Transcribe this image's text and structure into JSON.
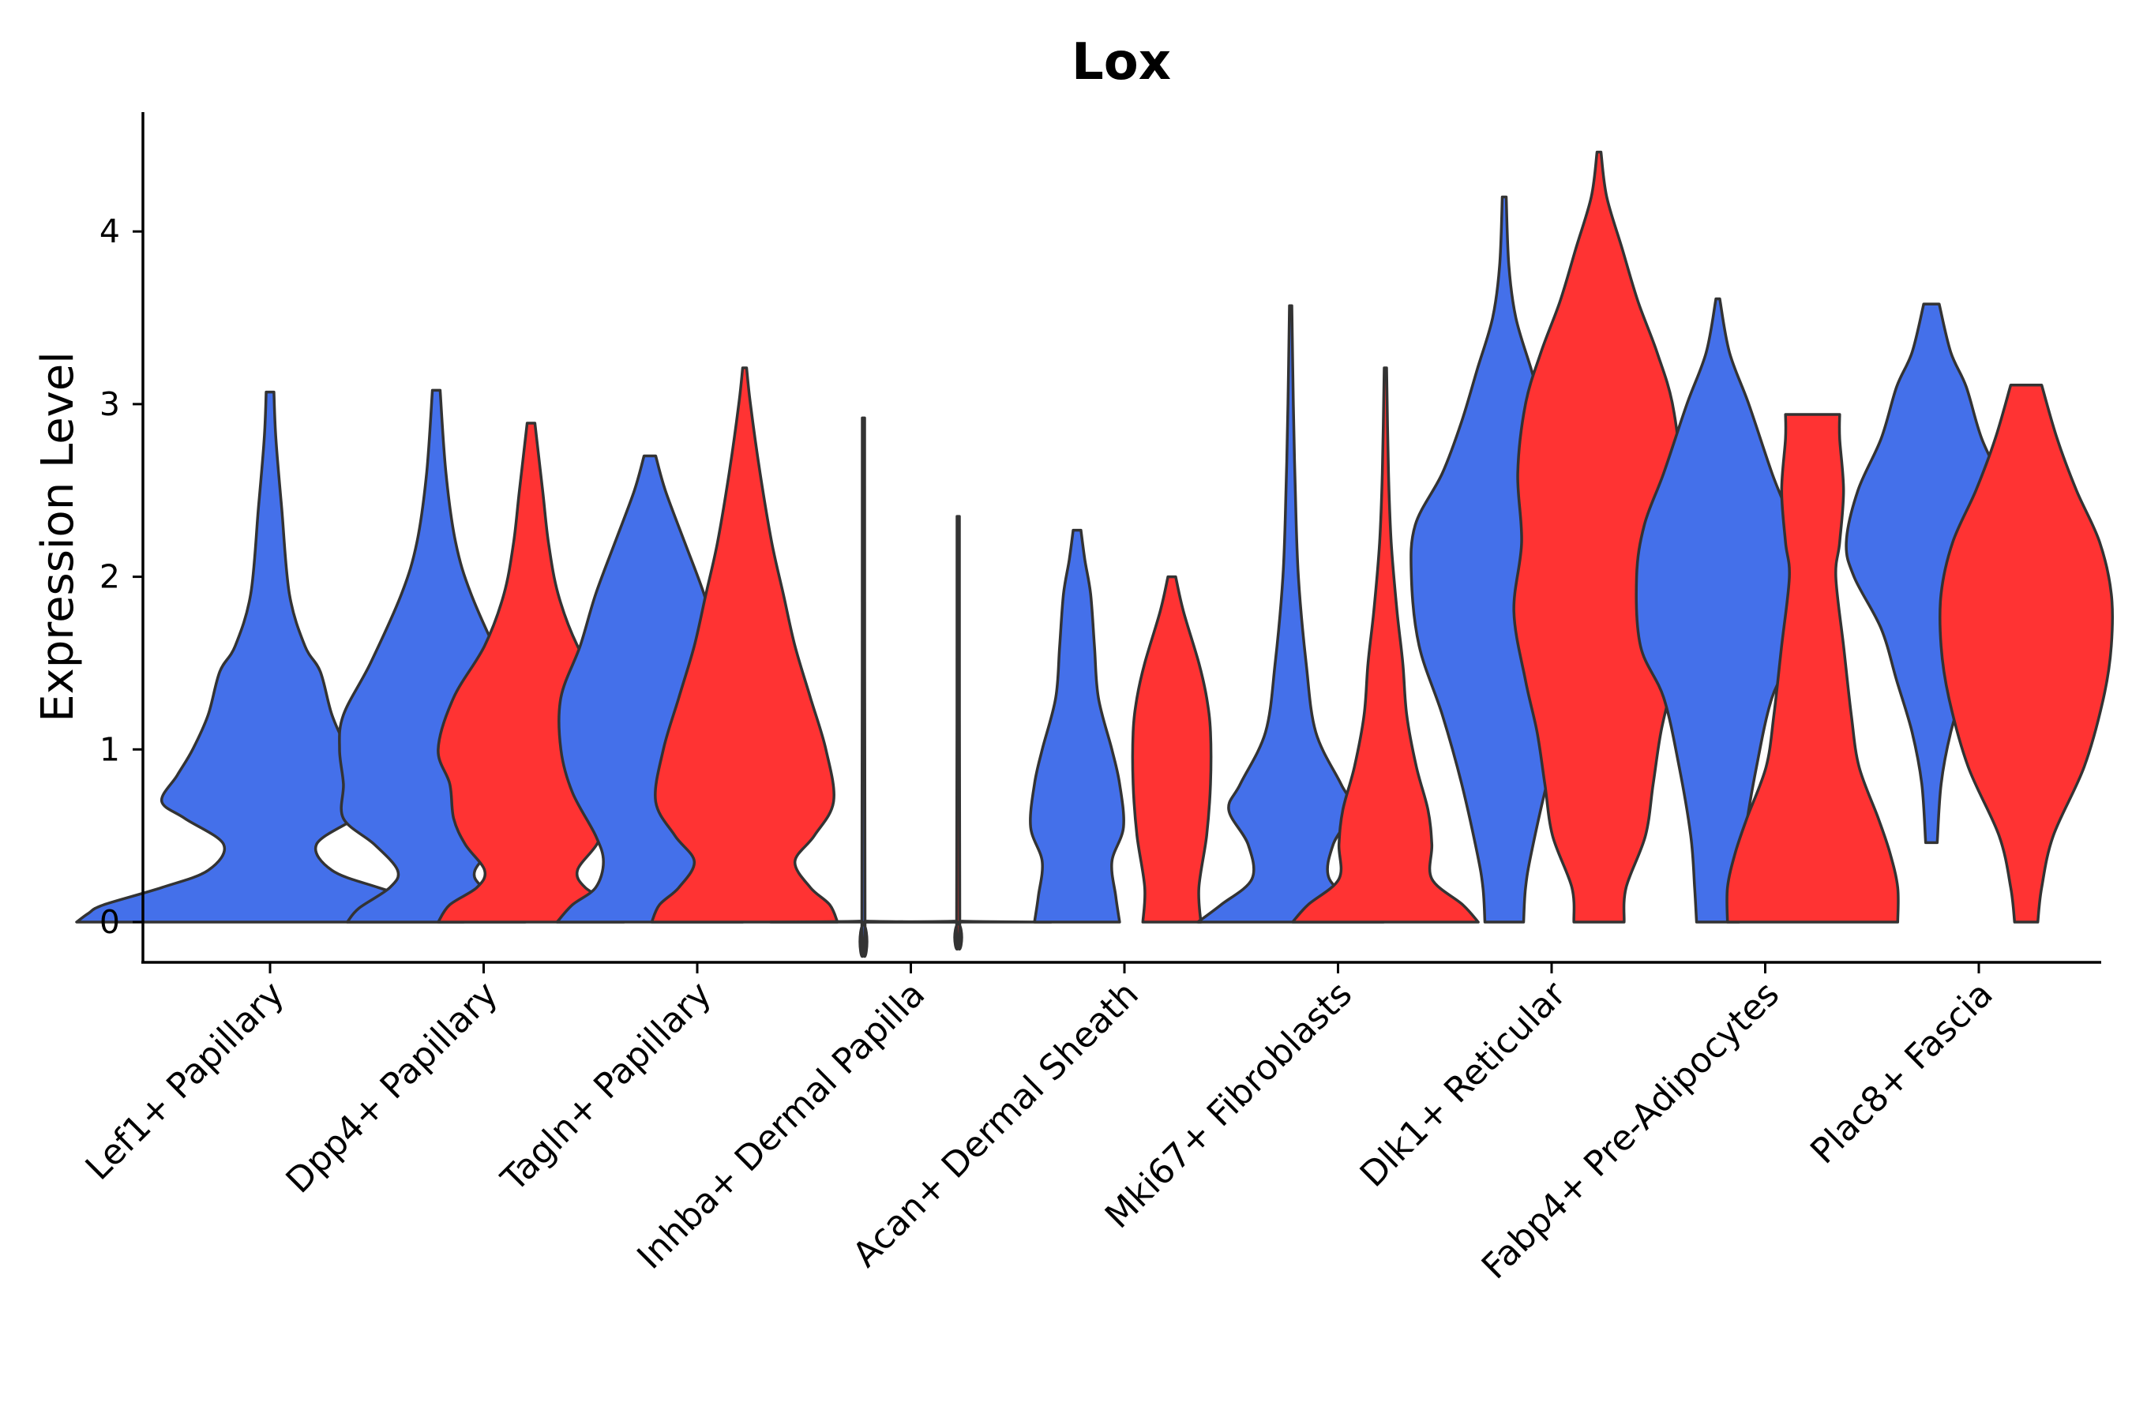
{
  "chart_data": {
    "type": "violin",
    "title": "Lox",
    "xlabel": "",
    "ylabel": "Expression Level",
    "ylim": [
      -0.22,
      4.7
    ],
    "yticks": [
      0,
      1,
      2,
      3,
      4
    ],
    "grid": false,
    "legend": "none",
    "colors": {
      "group1": "#4470EA",
      "group2": "#FF3333",
      "outline": "#333333"
    },
    "categories": [
      "Lef1+ Papillary",
      "Dpp4+ Papillary",
      "Tagln+ Papillary",
      "Inhba+ Dermal Papilla",
      "Acan+ Dermal Sheath",
      "Mki67+ Fibroblasts",
      "Dlk1+ Reticular",
      "Fabp4+ Pre-Adipocytes",
      "Plac8+ Fascia"
    ],
    "violins": [
      {
        "category": "Lef1+ Papillary",
        "group": "blue",
        "min": 0,
        "max": 3.07,
        "profile": [
          [
            0,
            0.5
          ],
          [
            0.05,
            0.47
          ],
          [
            0.1,
            0.43
          ],
          [
            0.2,
            0.28
          ],
          [
            0.3,
            0.16
          ],
          [
            0.45,
            0.12
          ],
          [
            0.6,
            0.22
          ],
          [
            0.7,
            0.28
          ],
          [
            0.85,
            0.24
          ],
          [
            1.0,
            0.2
          ],
          [
            1.2,
            0.16
          ],
          [
            1.45,
            0.13
          ],
          [
            1.6,
            0.09
          ],
          [
            1.9,
            0.05
          ],
          [
            2.4,
            0.03
          ],
          [
            2.8,
            0.015
          ],
          [
            3.07,
            0.01
          ]
        ]
      },
      {
        "category": "Dpp4+ Papillary",
        "group": "blue",
        "min": 0,
        "max": 3.08,
        "profile": [
          [
            0,
            0.23
          ],
          [
            0.08,
            0.2
          ],
          [
            0.2,
            0.12
          ],
          [
            0.3,
            0.1
          ],
          [
            0.45,
            0.16
          ],
          [
            0.6,
            0.24
          ],
          [
            0.8,
            0.24
          ],
          [
            1.0,
            0.25
          ],
          [
            1.2,
            0.24
          ],
          [
            1.5,
            0.17
          ],
          [
            1.9,
            0.09
          ],
          [
            2.2,
            0.05
          ],
          [
            2.6,
            0.025
          ],
          [
            3.08,
            0.01
          ]
        ]
      },
      {
        "category": "Dpp4+ Papillary",
        "group": "red",
        "min": 0,
        "max": 2.89,
        "profile": [
          [
            0,
            0.24
          ],
          [
            0.1,
            0.21
          ],
          [
            0.2,
            0.14
          ],
          [
            0.3,
            0.12
          ],
          [
            0.45,
            0.17
          ],
          [
            0.6,
            0.2
          ],
          [
            0.8,
            0.21
          ],
          [
            1.0,
            0.24
          ],
          [
            1.3,
            0.2
          ],
          [
            1.6,
            0.12
          ],
          [
            1.9,
            0.07
          ],
          [
            2.2,
            0.045
          ],
          [
            2.5,
            0.03
          ],
          [
            2.89,
            0.01
          ]
        ]
      },
      {
        "category": "Tagln+ Papillary",
        "group": "blue",
        "min": 0,
        "max": 2.7,
        "profile": [
          [
            0,
            0.24
          ],
          [
            0.1,
            0.2
          ],
          [
            0.2,
            0.14
          ],
          [
            0.35,
            0.12
          ],
          [
            0.5,
            0.14
          ],
          [
            0.75,
            0.2
          ],
          [
            1.0,
            0.23
          ],
          [
            1.3,
            0.23
          ],
          [
            1.6,
            0.18
          ],
          [
            1.9,
            0.14
          ],
          [
            2.2,
            0.09
          ],
          [
            2.5,
            0.04
          ],
          [
            2.7,
            0.015
          ]
        ]
      },
      {
        "category": "Tagln+ Papillary",
        "group": "red",
        "min": 0,
        "max": 3.21,
        "profile": [
          [
            0,
            0.24
          ],
          [
            0.1,
            0.22
          ],
          [
            0.2,
            0.17
          ],
          [
            0.35,
            0.13
          ],
          [
            0.5,
            0.18
          ],
          [
            0.7,
            0.23
          ],
          [
            1.0,
            0.21
          ],
          [
            1.3,
            0.17
          ],
          [
            1.6,
            0.13
          ],
          [
            1.9,
            0.1
          ],
          [
            2.2,
            0.07
          ],
          [
            2.6,
            0.04
          ],
          [
            3.0,
            0.015
          ],
          [
            3.21,
            0.005
          ]
        ]
      },
      {
        "category": "Inhba+ Dermal Papilla",
        "group": "blue",
        "min": 0,
        "max": 2.92,
        "profile": [
          [
            0,
            0.24
          ],
          [
            0.005,
            0.01
          ],
          [
            0.02,
            0.004
          ],
          [
            2.92,
            0.003
          ]
        ]
      },
      {
        "category": "Inhba+ Dermal Papilla",
        "group": "red",
        "min": 0,
        "max": 2.35,
        "profile": [
          [
            0,
            0.24
          ],
          [
            0.005,
            0.01
          ],
          [
            0.02,
            0.004
          ],
          [
            2.35,
            0.003
          ]
        ]
      },
      {
        "category": "Acan+ Dermal Sheath",
        "group": "blue",
        "min": 0,
        "max": 2.27,
        "profile": [
          [
            0,
            0.11
          ],
          [
            0.15,
            0.1
          ],
          [
            0.35,
            0.09
          ],
          [
            0.55,
            0.12
          ],
          [
            0.8,
            0.11
          ],
          [
            1.0,
            0.09
          ],
          [
            1.3,
            0.055
          ],
          [
            1.6,
            0.045
          ],
          [
            1.9,
            0.035
          ],
          [
            2.1,
            0.02
          ],
          [
            2.27,
            0.01
          ]
        ]
      },
      {
        "category": "Acan+ Dermal Sheath",
        "group": "red",
        "min": 0,
        "max": 2.0,
        "profile": [
          [
            0,
            0.075
          ],
          [
            0.2,
            0.07
          ],
          [
            0.5,
            0.09
          ],
          [
            0.8,
            0.1
          ],
          [
            1.1,
            0.1
          ],
          [
            1.3,
            0.09
          ],
          [
            1.5,
            0.07
          ],
          [
            1.8,
            0.03
          ],
          [
            2.0,
            0.01
          ]
        ]
      },
      {
        "category": "Mki67+ Fibroblasts",
        "group": "blue",
        "min": 0,
        "max": 3.57,
        "profile": [
          [
            0,
            0.24
          ],
          [
            0.1,
            0.18
          ],
          [
            0.25,
            0.1
          ],
          [
            0.45,
            0.11
          ],
          [
            0.65,
            0.16
          ],
          [
            0.8,
            0.13
          ],
          [
            1.1,
            0.065
          ],
          [
            1.5,
            0.04
          ],
          [
            2.0,
            0.02
          ],
          [
            2.5,
            0.012
          ],
          [
            3.0,
            0.007
          ],
          [
            3.57,
            0.003
          ]
        ]
      },
      {
        "category": "Mki67+ Fibroblasts",
        "group": "red",
        "min": 0,
        "max": 3.21,
        "profile": [
          [
            0,
            0.24
          ],
          [
            0.1,
            0.2
          ],
          [
            0.25,
            0.12
          ],
          [
            0.45,
            0.12
          ],
          [
            0.65,
            0.11
          ],
          [
            0.9,
            0.08
          ],
          [
            1.2,
            0.055
          ],
          [
            1.5,
            0.045
          ],
          [
            1.8,
            0.03
          ],
          [
            2.2,
            0.015
          ],
          [
            2.6,
            0.008
          ],
          [
            3.21,
            0.003
          ]
        ]
      },
      {
        "category": "Dlk1+ Reticular",
        "group": "blue",
        "min": 0,
        "max": 4.2,
        "profile": [
          [
            0,
            0.05
          ],
          [
            0.2,
            0.055
          ],
          [
            0.4,
            0.07
          ],
          [
            0.8,
            0.11
          ],
          [
            1.2,
            0.16
          ],
          [
            1.6,
            0.22
          ],
          [
            2.0,
            0.24
          ],
          [
            2.3,
            0.23
          ],
          [
            2.6,
            0.16
          ],
          [
            2.9,
            0.11
          ],
          [
            3.2,
            0.07
          ],
          [
            3.5,
            0.03
          ],
          [
            3.8,
            0.012
          ],
          [
            4.2,
            0.005
          ]
        ]
      },
      {
        "category": "Dlk1+ Reticular",
        "group": "red",
        "min": 0,
        "max": 4.46,
        "profile": [
          [
            0,
            0.065
          ],
          [
            0.2,
            0.07
          ],
          [
            0.5,
            0.12
          ],
          [
            0.8,
            0.14
          ],
          [
            1.1,
            0.16
          ],
          [
            1.4,
            0.19
          ],
          [
            1.8,
            0.22
          ],
          [
            2.2,
            0.2
          ],
          [
            2.6,
            0.21
          ],
          [
            3.0,
            0.19
          ],
          [
            3.3,
            0.15
          ],
          [
            3.6,
            0.1
          ],
          [
            3.9,
            0.06
          ],
          [
            4.2,
            0.02
          ],
          [
            4.46,
            0.005
          ]
        ]
      },
      {
        "category": "Fabp4+ Pre-Adipocytes",
        "group": "blue",
        "min": 0,
        "max": 3.61,
        "profile": [
          [
            0,
            0.055
          ],
          [
            0.2,
            0.06
          ],
          [
            0.5,
            0.07
          ],
          [
            0.9,
            0.1
          ],
          [
            1.3,
            0.14
          ],
          [
            1.6,
            0.2
          ],
          [
            2.0,
            0.21
          ],
          [
            2.3,
            0.19
          ],
          [
            2.6,
            0.14
          ],
          [
            3.0,
            0.08
          ],
          [
            3.3,
            0.03
          ],
          [
            3.61,
            0.005
          ]
        ]
      },
      {
        "category": "Fabp4+ Pre-Adipocytes",
        "group": "red",
        "min": 0,
        "max": 2.94,
        "profile": [
          [
            0,
            0.22
          ],
          [
            0.2,
            0.22
          ],
          [
            0.4,
            0.2
          ],
          [
            0.6,
            0.17
          ],
          [
            0.9,
            0.12
          ],
          [
            1.2,
            0.1
          ],
          [
            1.6,
            0.08
          ],
          [
            2.0,
            0.06
          ],
          [
            2.2,
            0.07
          ],
          [
            2.5,
            0.08
          ],
          [
            2.8,
            0.07
          ],
          [
            2.94,
            0.07
          ]
        ]
      },
      {
        "category": "Plac8+ Fascia",
        "group": "blue",
        "min": 0.46,
        "max": 3.58,
        "profile": [
          [
            0.46,
            0.015
          ],
          [
            0.8,
            0.025
          ],
          [
            1.1,
            0.05
          ],
          [
            1.4,
            0.09
          ],
          [
            1.7,
            0.13
          ],
          [
            2.0,
            0.2
          ],
          [
            2.2,
            0.22
          ],
          [
            2.5,
            0.19
          ],
          [
            2.8,
            0.13
          ],
          [
            3.1,
            0.09
          ],
          [
            3.3,
            0.05
          ],
          [
            3.58,
            0.02
          ]
        ]
      },
      {
        "category": "Plac8+ Fascia",
        "group": "red",
        "min": 0,
        "max": 3.11,
        "profile": [
          [
            0,
            0.03
          ],
          [
            0.2,
            0.04
          ],
          [
            0.5,
            0.07
          ],
          [
            0.9,
            0.15
          ],
          [
            1.3,
            0.2
          ],
          [
            1.6,
            0.22
          ],
          [
            1.9,
            0.22
          ],
          [
            2.2,
            0.19
          ],
          [
            2.5,
            0.13
          ],
          [
            2.8,
            0.08
          ],
          [
            3.11,
            0.04
          ]
        ]
      }
    ]
  }
}
